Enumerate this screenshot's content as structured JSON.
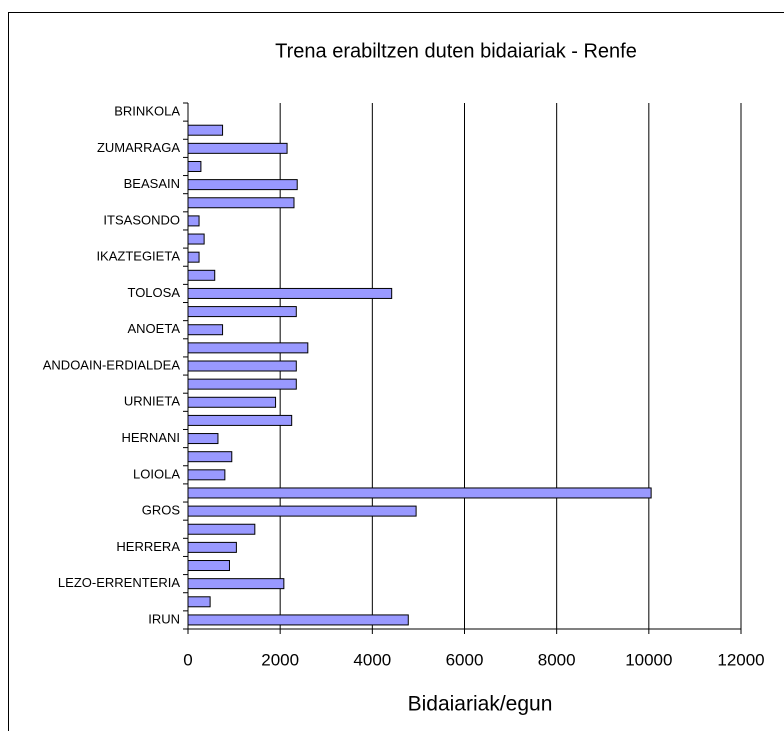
{
  "chart_data": {
    "type": "bar",
    "orientation": "horizontal",
    "title": "Trena erabiltzen duten bidaiariak - Renfe",
    "xlabel": "Bidaiariak/egun",
    "categories": [
      "BRINKOLA",
      null,
      "ZUMARRAGA",
      null,
      "BEASAIN",
      null,
      "ITSASONDO",
      null,
      "IKAZTEGIETA",
      null,
      "TOLOSA",
      null,
      "ANOETA",
      null,
      "ANDOAIN-ERDIALDEA",
      null,
      "URNIETA",
      null,
      "HERNANI",
      null,
      "LOIOLA",
      null,
      "GROS",
      null,
      "HERRERA",
      null,
      "LEZO-ERRENTERIA",
      null,
      "IRUN"
    ],
    "values": [
      0,
      750,
      2150,
      280,
      2370,
      2300,
      240,
      350,
      240,
      580,
      4420,
      2350,
      750,
      2600,
      2350,
      2350,
      1900,
      2250,
      650,
      950,
      800,
      10050,
      4950,
      1450,
      1050,
      900,
      2080,
      480,
      4780
    ],
    "color": "#9999ff",
    "xlim": [
      0,
      12000
    ],
    "xticks": [
      0,
      2000,
      4000,
      6000,
      8000,
      10000,
      12000
    ],
    "grid": true
  }
}
